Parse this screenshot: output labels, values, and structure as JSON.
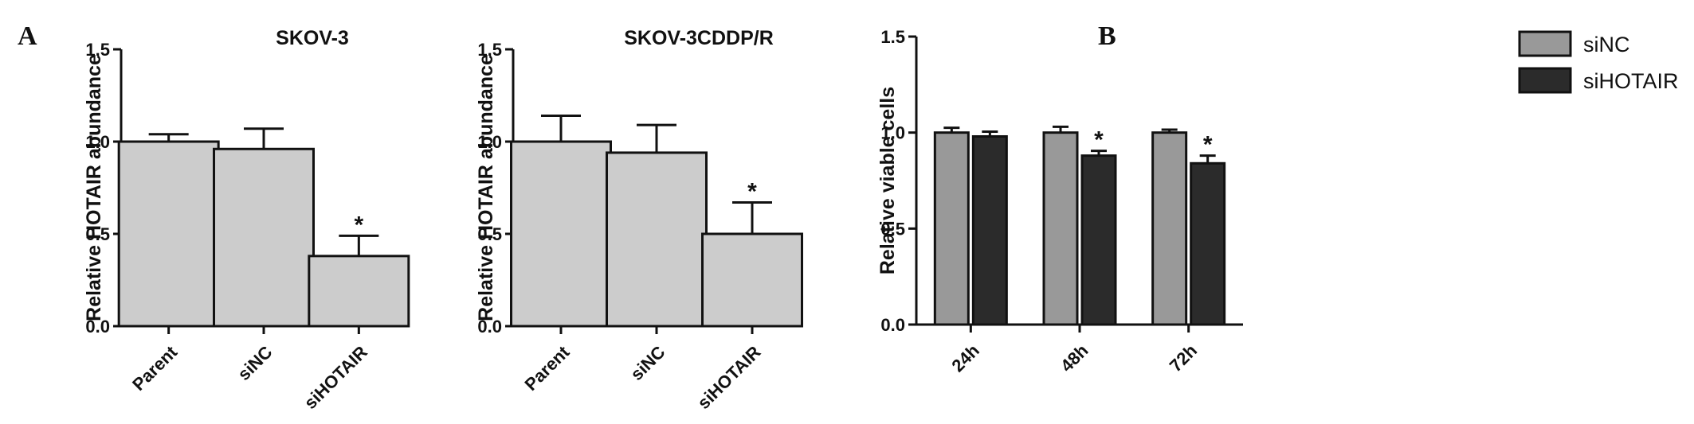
{
  "panels": {
    "a_label": "A",
    "b_label": "B"
  },
  "chart_data": [
    {
      "type": "bar",
      "title": "SKOV-3",
      "ylabel": "Relative HOTAIR abundance",
      "xlabel": "",
      "ylim": [
        0,
        1.5
      ],
      "yticks": [
        "0.0",
        "0.5",
        "1.0",
        "1.5"
      ],
      "categories": [
        "Parent",
        "siNC",
        "siHOTAIR"
      ],
      "values": [
        1.0,
        0.96,
        0.38
      ],
      "errors": [
        0.04,
        0.11,
        0.11
      ],
      "significance": [
        "",
        "",
        "*"
      ],
      "colors": {
        "bar": "#cccccc"
      }
    },
    {
      "type": "bar",
      "title": "SKOV-3CDDP/R",
      "ylabel": "Relative HOTAIR abundance",
      "xlabel": "",
      "ylim": [
        0,
        1.5
      ],
      "yticks": [
        "0.0",
        "0.5",
        "1.0",
        "1.5"
      ],
      "categories": [
        "Parent",
        "siNC",
        "siHOTAIR"
      ],
      "values": [
        1.0,
        0.94,
        0.5
      ],
      "errors": [
        0.14,
        0.15,
        0.17
      ],
      "significance": [
        "",
        "",
        "*"
      ],
      "colors": {
        "bar": "#cccccc"
      }
    },
    {
      "type": "bar",
      "title": "",
      "ylabel": "Relative viable cells",
      "xlabel": "",
      "ylim": [
        0,
        1.5
      ],
      "yticks": [
        "0.0",
        "0.5",
        "1.0",
        "1.5"
      ],
      "categories": [
        "24h",
        "48h",
        "72h"
      ],
      "series": [
        {
          "name": "siNC",
          "values": [
            1.0,
            1.0,
            1.0
          ],
          "errors": [
            0.025,
            0.03,
            0.015
          ],
          "significance": [
            "",
            "",
            ""
          ],
          "color": "#999999"
        },
        {
          "name": "siHOTAIR",
          "values": [
            0.98,
            0.88,
            0.84
          ],
          "errors": [
            0.025,
            0.025,
            0.04
          ],
          "significance": [
            "",
            "*",
            "*"
          ],
          "color": "#2b2b2b"
        }
      ],
      "legend": "top-right"
    }
  ]
}
